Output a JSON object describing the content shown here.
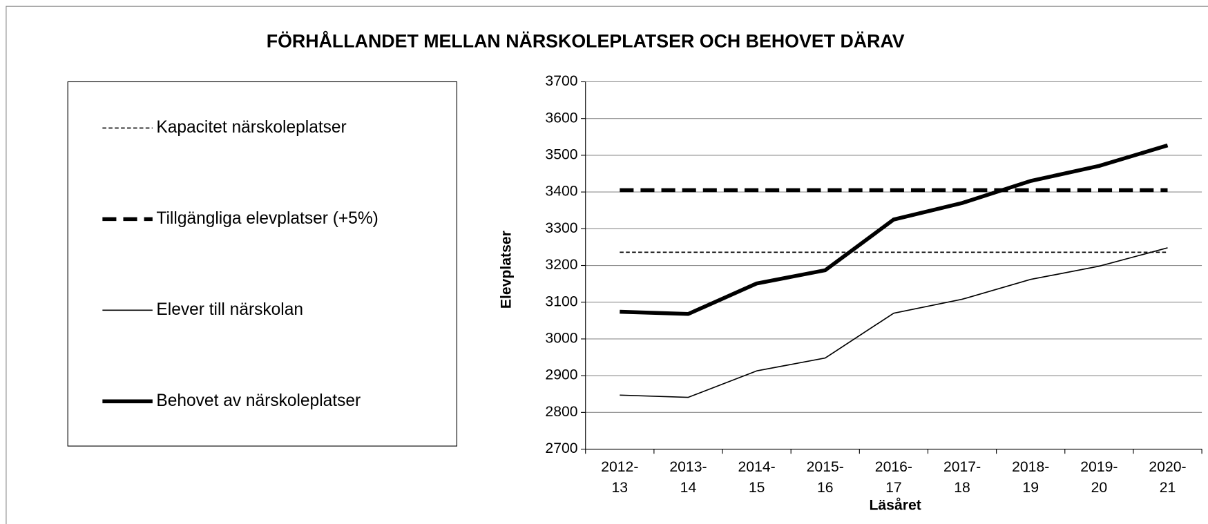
{
  "chart_data": {
    "type": "line",
    "title": "FÖRHÅLLANDET MELLAN NÄRSKOLEPLATSER OCH BEHOVET DÄRAV",
    "x_label": "Läsåret",
    "y_label": "Elevplatser",
    "categories": [
      "2012-13",
      "2013-14",
      "2014-15",
      "2015-16",
      "2016-17",
      "2017-18",
      "2018-19",
      "2019-20",
      "2020-21"
    ],
    "ylim": [
      2700,
      3700
    ],
    "yticks": [
      2700,
      2800,
      2900,
      3000,
      3100,
      3200,
      3300,
      3400,
      3500,
      3600,
      3700
    ],
    "grid": true,
    "legend": "left",
    "series": [
      {
        "name": "Kapacitet närskoleplatser",
        "color": "#000000",
        "line_style": "short-dash-thin",
        "values": [
          3236,
          3236,
          3236,
          3236,
          3236,
          3236,
          3236,
          3236,
          3236
        ]
      },
      {
        "name": "Tillgängliga elevplatser (+5%)",
        "color": "#000000",
        "line_style": "long-dash-thick",
        "values": [
          3405,
          3405,
          3405,
          3405,
          3405,
          3405,
          3405,
          3405,
          3405
        ]
      },
      {
        "name": "Elever till närskolan",
        "color": "#000000",
        "line_style": "solid-thin",
        "values": [
          2847,
          2841,
          2913,
          2948,
          3070,
          3108,
          3162,
          3198,
          3248
        ]
      },
      {
        "name": "Behovet av närskoleplatser",
        "color": "#000000",
        "line_style": "solid-thick",
        "values": [
          3074,
          3068,
          3151,
          3187,
          3325,
          3370,
          3430,
          3471,
          3527
        ]
      }
    ]
  }
}
